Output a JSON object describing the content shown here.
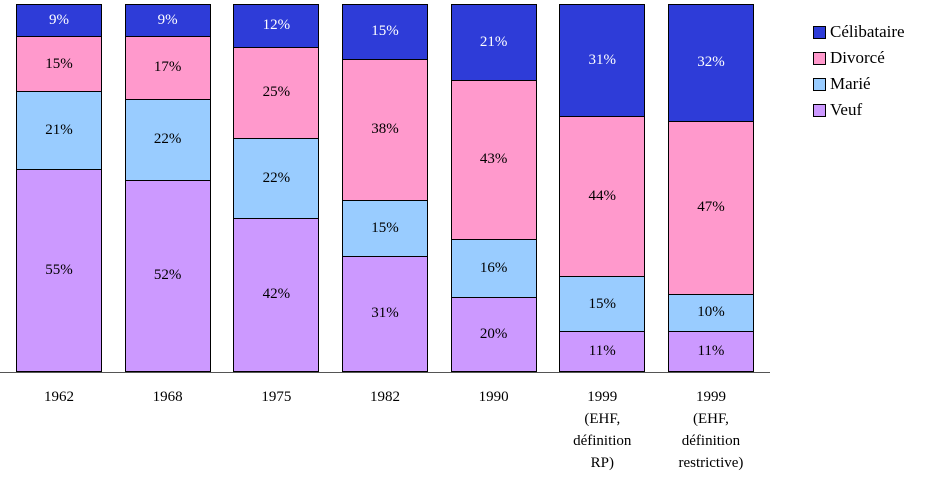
{
  "chart_data": {
    "type": "bar",
    "stacked": true,
    "title": "",
    "xlabel": "",
    "ylabel": "",
    "ylim": [
      0,
      100
    ],
    "grid": false,
    "legend_position": "right",
    "value_suffix": "%",
    "categories": [
      "1962",
      "1968",
      "1975",
      "1982",
      "1990",
      "1999 (EHF, définition RP)",
      "1999 (EHF, définition restrictive)"
    ],
    "category_label_lines": [
      [
        "1962"
      ],
      [
        "1968"
      ],
      [
        "1975"
      ],
      [
        "1982"
      ],
      [
        "1990"
      ],
      [
        "1999",
        "(EHF,",
        "définition",
        "RP)"
      ],
      [
        "1999",
        "(EHF,",
        "définition",
        "restrictive)"
      ]
    ],
    "series_bottom_to_top": [
      {
        "name": "Veuf",
        "color": "#CC99FF",
        "text_color": "#000000",
        "values": [
          55,
          52,
          42,
          31,
          20,
          11,
          11
        ]
      },
      {
        "name": "Marié",
        "color": "#99CCFF",
        "text_color": "#000000",
        "values": [
          21,
          22,
          22,
          15,
          16,
          15,
          10
        ]
      },
      {
        "name": "Divorcé",
        "color": "#FF99CC",
        "text_color": "#000000",
        "values": [
          15,
          17,
          25,
          38,
          43,
          44,
          47
        ]
      },
      {
        "name": "Célibataire",
        "color": "#2E3CD8",
        "text_color": "#FFFFFF",
        "values": [
          9,
          9,
          12,
          15,
          21,
          31,
          32
        ]
      }
    ],
    "legend_order_top_to_bottom": [
      "Célibataire",
      "Divorcé",
      "Marié",
      "Veuf"
    ]
  }
}
